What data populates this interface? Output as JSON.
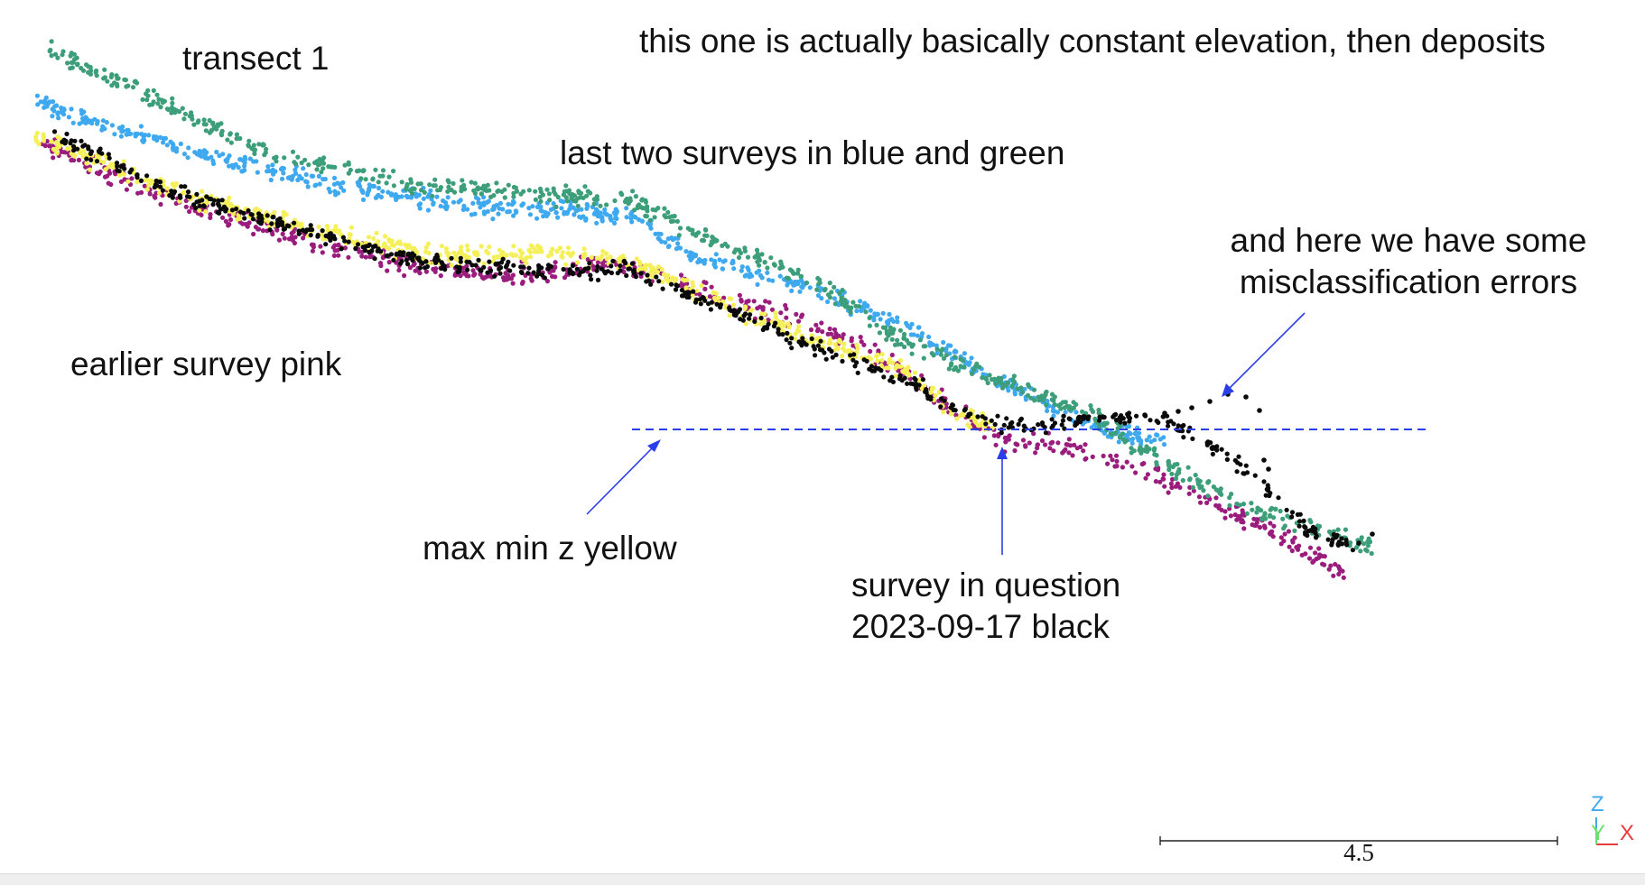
{
  "viewer": {
    "annotations": {
      "transect": "transect 1",
      "elevation_note": "this one is actually basically constant elevation, then deposits",
      "last_two": "last two surveys in blue and green",
      "errors_line1": "and here we have some",
      "errors_line2": "misclassification errors",
      "earlier_survey": "earlier survey pink",
      "max_min": "max min z yellow",
      "question_line1": "survey in question",
      "question_line2": "2023-09-17  black"
    },
    "scale_bar": {
      "label": "4.5"
    },
    "axes": {
      "z": "Z",
      "y": "Y",
      "x": "X"
    },
    "colors": {
      "green": "#3d9e7a",
      "blue": "#3fa9f0",
      "black": "#0a0a0a",
      "yellow": "#f5f05a",
      "pink": "#9a1d7e",
      "guide": "#2a3ee8",
      "axis_z": "#3fa9f0",
      "axis_y": "#6be070",
      "axis_x": "#e83a3a"
    }
  }
}
